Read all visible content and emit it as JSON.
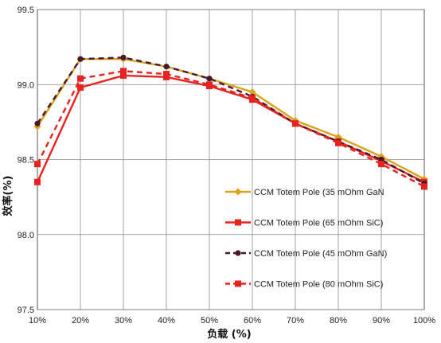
{
  "chart_data": {
    "type": "line",
    "xlabel": "负载 (%)",
    "ylabel": "效率(%)",
    "categories": [
      "10%",
      "20%",
      "30%",
      "40%",
      "50%",
      "60%",
      "70%",
      "80%",
      "90%",
      "100%"
    ],
    "y_ticks": [
      "97.5",
      "98.0",
      "98.5",
      "99.0",
      "99.5"
    ],
    "ylim": [
      97.5,
      99.5
    ],
    "grid": true,
    "legend_position": "bottom-right inside plot",
    "series": [
      {
        "name": "CCM Totem Pole (35 mOhm GaN",
        "values": [
          98.72,
          99.17,
          99.17,
          99.12,
          99.04,
          98.95,
          98.76,
          98.65,
          98.52,
          98.37
        ],
        "color": "#d9a31a",
        "dash": "solid",
        "marker": "diamond"
      },
      {
        "name": "CCM Totem Pole (65 mOhm SiC)",
        "values": [
          98.35,
          98.98,
          99.06,
          99.05,
          98.99,
          98.9,
          98.74,
          98.62,
          98.49,
          98.35
        ],
        "color": "#e8231f",
        "dash": "solid",
        "marker": "square"
      },
      {
        "name": "CCM Totem Pole (45 mOhm GaN)",
        "values": [
          98.74,
          99.17,
          99.18,
          99.12,
          99.04,
          98.92,
          98.74,
          98.62,
          98.5,
          98.34
        ],
        "color": "#4a1730",
        "dash": "dashed",
        "marker": "circle"
      },
      {
        "name": "CCM Totem Pole (80 mOhm SiC)",
        "values": [
          98.47,
          99.04,
          99.09,
          99.07,
          99.0,
          98.91,
          98.74,
          98.61,
          98.47,
          98.32
        ],
        "color": "#e8231f",
        "dash": "dashed",
        "marker": "square"
      }
    ]
  }
}
